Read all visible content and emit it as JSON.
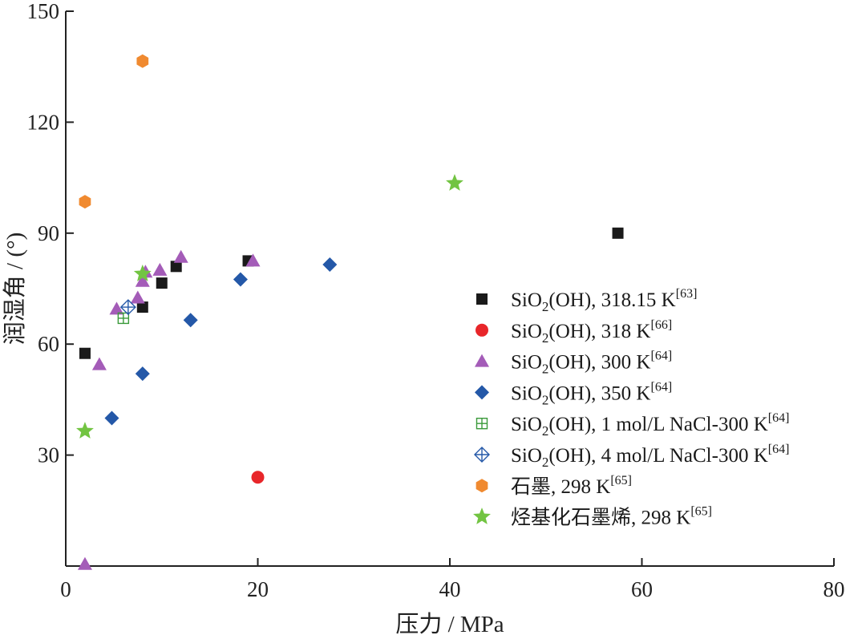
{
  "chart_data": {
    "type": "scatter",
    "xlabel": "压力 / MPa",
    "ylabel": "润湿角 / (°)",
    "xlim": [
      0,
      80
    ],
    "ylim": [
      0,
      150
    ],
    "x_ticks": [
      0,
      20,
      40,
      60,
      80
    ],
    "y_ticks": [
      30,
      60,
      90,
      120,
      150
    ],
    "x_tick_labels": [
      "0",
      "20",
      "40",
      "60",
      "80"
    ],
    "y_tick_labels": [
      "30",
      "60",
      "90",
      "120",
      "150"
    ],
    "grid": false,
    "legend_position": "right",
    "series": [
      {
        "name": "SiO2(OH), 318.15 K[63]",
        "legend": {
          "base": "SiO",
          "sub": "2",
          "mid": "(OH), 318.15 K",
          "sup": "[63]"
        },
        "marker": "square-icon",
        "color": "#1a1a1a",
        "x": [
          2.0,
          8.0,
          10.0,
          11.5,
          19.0,
          57.5
        ],
        "y": [
          57.5,
          70.0,
          76.5,
          81.0,
          82.5,
          90.0
        ]
      },
      {
        "name": "SiO2(OH), 318 K[66]",
        "legend": {
          "base": "SiO",
          "sub": "2",
          "mid": "(OH), 318 K",
          "sup": "[66]"
        },
        "marker": "circle-icon",
        "color": "#e8262a",
        "x": [
          20.0
        ],
        "y": [
          24.0
        ]
      },
      {
        "name": "SiO2(OH), 300 K[64]",
        "legend": {
          "base": "SiO",
          "sub": "2",
          "mid": "(OH), 300 K",
          "sup": "[64]"
        },
        "marker": "triangle-icon",
        "color": "#a45cb8",
        "x": [
          2.0,
          3.5,
          5.3,
          7.5,
          8.0,
          8.3,
          9.8,
          12.0,
          19.5
        ],
        "y": [
          0.5,
          54.5,
          69.5,
          72.5,
          77.0,
          79.5,
          80.0,
          83.5,
          82.5
        ]
      },
      {
        "name": "SiO2(OH), 350 K[64]",
        "legend": {
          "base": "SiO",
          "sub": "2",
          "mid": "(OH), 350 K",
          "sup": "[64]"
        },
        "marker": "diamond-icon",
        "color": "#2458a8",
        "x": [
          4.8,
          8.0,
          13.0,
          18.2,
          27.5
        ],
        "y": [
          40.0,
          52.0,
          66.5,
          77.5,
          81.5
        ]
      },
      {
        "name": "SiO2(OH), 1 mol/L NaCl-300 K[64]",
        "legend": {
          "base": "SiO",
          "sub": "2",
          "mid": "(OH), 1 mol/L NaCl-300 K",
          "sup": "[64]"
        },
        "marker": "boxed-plus-icon",
        "color": "#3a9a3a",
        "x": [
          6.0
        ],
        "y": [
          67.0
        ]
      },
      {
        "name": "SiO2(OH), 4 mol/L NaCl-300 K[64]",
        "legend": {
          "base": "SiO",
          "sub": "2",
          "mid": "(OH), 4 mol/L NaCl-300 K",
          "sup": "[64]"
        },
        "marker": "diamond-plus-icon",
        "color": "#2458a8",
        "x": [
          6.5
        ],
        "y": [
          70.0
        ]
      },
      {
        "name": "石墨, 298 K[65]",
        "legend": {
          "base": "石墨, 298 K",
          "sub": "",
          "mid": "",
          "sup": "[65]"
        },
        "marker": "hexagon-icon",
        "color": "#f08a30",
        "x": [
          2.0,
          8.0
        ],
        "y": [
          98.5,
          136.5
        ]
      },
      {
        "name": "烃基化石墨烯, 298 K[65]",
        "legend": {
          "base": "烃基化石墨烯, 298 K",
          "sub": "",
          "mid": "",
          "sup": "[65]"
        },
        "marker": "star-icon",
        "color": "#72c442",
        "x": [
          2.0,
          8.0,
          40.5
        ],
        "y": [
          36.5,
          79.0,
          103.5
        ]
      }
    ]
  }
}
